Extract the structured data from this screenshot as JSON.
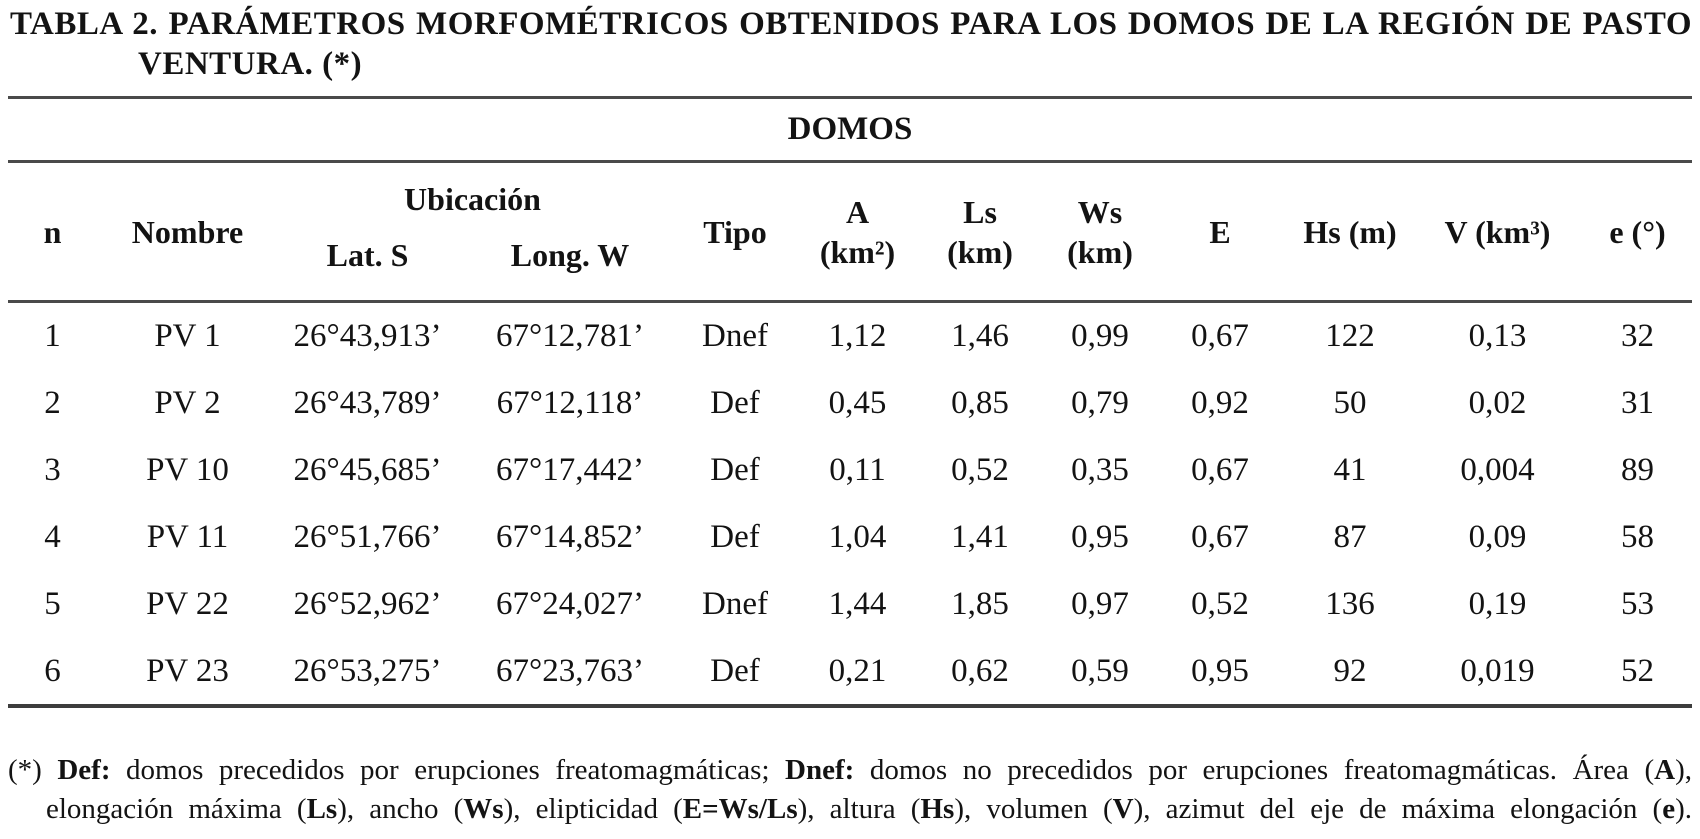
{
  "title": {
    "line1": "TABLA 2. PARÁMETROS MORFOMÉTRICOS OBTENIDOS PARA LOS DOMOS DE LA REGIÓN DE PASTO",
    "line2": "VENTURA. (*)"
  },
  "table": {
    "group_header": "DOMOS",
    "columns": {
      "n": "n",
      "nombre": "Nombre",
      "ubicacion": "Ubicación",
      "lat": "Lat. S",
      "long": "Long. W",
      "tipo": "Tipo",
      "a_line1": "A",
      "a_line2": "(km²)",
      "ls_line1": "Ls",
      "ls_line2": "(km)",
      "ws_line1": "Ws",
      "ws_line2": "(km)",
      "e_upper": "E",
      "hs": "Hs (m)",
      "v": "V (km³)",
      "e_lower": "e (°)"
    },
    "rows": [
      {
        "n": "1",
        "nombre": "PV 1",
        "lat": "26°43,913’",
        "long": "67°12,781’",
        "tipo": "Dnef",
        "a": "1,12",
        "ls": "1,46",
        "ws": "0,99",
        "e": "0,67",
        "hs": "122",
        "v": "0,13",
        "az": "32"
      },
      {
        "n": "2",
        "nombre": "PV 2",
        "lat": "26°43,789’",
        "long": "67°12,118’",
        "tipo": "Def",
        "a": "0,45",
        "ls": "0,85",
        "ws": "0,79",
        "e": "0,92",
        "hs": "50",
        "v": "0,02",
        "az": "31"
      },
      {
        "n": "3",
        "nombre": "PV 10",
        "lat": "26°45,685’",
        "long": "67°17,442’",
        "tipo": "Def",
        "a": "0,11",
        "ls": "0,52",
        "ws": "0,35",
        "e": "0,67",
        "hs": "41",
        "v": "0,004",
        "az": "89"
      },
      {
        "n": "4",
        "nombre": "PV 11",
        "lat": "26°51,766’",
        "long": "67°14,852’",
        "tipo": "Def",
        "a": "1,04",
        "ls": "1,41",
        "ws": "0,95",
        "e": "0,67",
        "hs": "87",
        "v": "0,09",
        "az": "58"
      },
      {
        "n": "5",
        "nombre": "PV 22",
        "lat": "26°52,962’",
        "long": "67°24,027’",
        "tipo": "Dnef",
        "a": "1,44",
        "ls": "1,85",
        "ws": "0,97",
        "e": "0,52",
        "hs": "136",
        "v": "0,19",
        "az": "53"
      },
      {
        "n": "6",
        "nombre": "PV 23",
        "lat": "26°53,275’",
        "long": "67°23,763’",
        "tipo": "Def",
        "a": "0,21",
        "ls": "0,62",
        "ws": "0,59",
        "e": "0,95",
        "hs": "92",
        "v": "0,019",
        "az": "52"
      }
    ]
  },
  "footnote": {
    "line1": [
      {
        "text": "(*) ",
        "cls": ""
      },
      {
        "text": "Def:",
        "cls": "b"
      },
      {
        "text": " domos precedidos por erupciones freatomagmáticas; ",
        "cls": ""
      },
      {
        "text": "Dnef:",
        "cls": "b"
      },
      {
        "text": " domos no precedidos por erupciones freatomagmáticas. Área (",
        "cls": ""
      },
      {
        "text": "A",
        "cls": "b"
      },
      {
        "text": "),",
        "cls": ""
      }
    ],
    "line2": [
      {
        "text": "elongación máxima (",
        "cls": ""
      },
      {
        "text": "Ls",
        "cls": "b"
      },
      {
        "text": "), ancho (",
        "cls": ""
      },
      {
        "text": "Ws",
        "cls": "b"
      },
      {
        "text": "), elipticidad (",
        "cls": ""
      },
      {
        "text": "E=Ws/Ls",
        "cls": "b"
      },
      {
        "text": "), altura (",
        "cls": ""
      },
      {
        "text": "Hs",
        "cls": "b"
      },
      {
        "text": "), volumen (",
        "cls": ""
      },
      {
        "text": "V",
        "cls": "b"
      },
      {
        "text": "), azimut del eje de máxima elongación (",
        "cls": ""
      },
      {
        "text": "e",
        "cls": "b"
      },
      {
        "text": ").",
        "cls": ""
      }
    ]
  },
  "colors": {
    "background": "#ffffff",
    "text": "#131313",
    "rule": "#4a4a4a"
  }
}
